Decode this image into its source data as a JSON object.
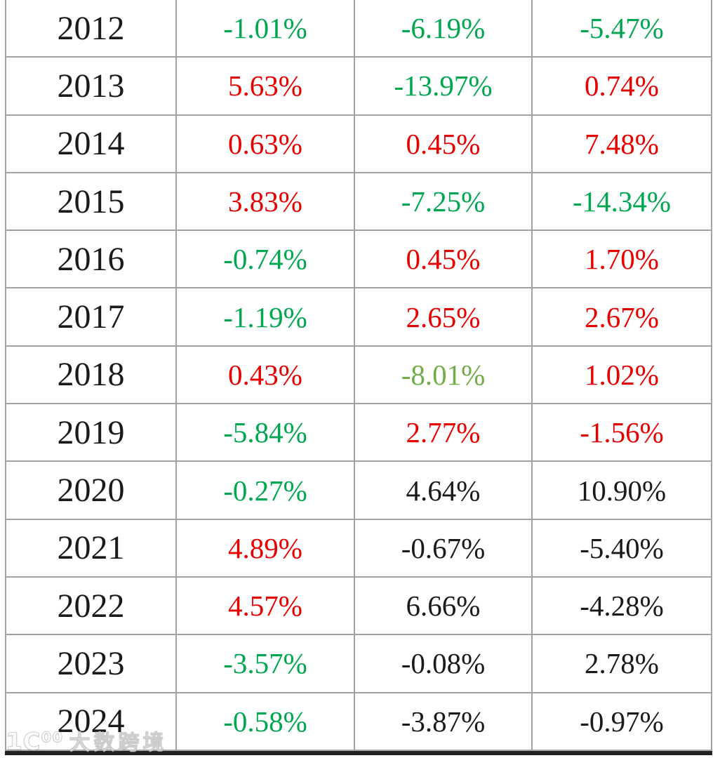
{
  "colors": {
    "positive_red": "#e60000",
    "negative_green": "#00a650",
    "olive_green": "#70ad47",
    "neutral_black": "#1a1a1a",
    "grid_border": "#a2a2a2",
    "bottom_bar": "#222222"
  },
  "watermark": {
    "logo_text": "1Ϲ⁰⁰",
    "brand_text": "大数跨境"
  },
  "chart_data": {
    "type": "table",
    "title": "",
    "columns": [
      "year",
      "value_1",
      "value_2",
      "value_3"
    ],
    "layout": "13 rows, year column + 3 percentage columns; red = gain style, green = loss style, black = plain",
    "rows": [
      {
        "year": "2012",
        "values": [
          {
            "text": "-1.01%",
            "color": "green"
          },
          {
            "text": "-6.19%",
            "color": "green"
          },
          {
            "text": "-5.47%",
            "color": "green"
          }
        ]
      },
      {
        "year": "2013",
        "values": [
          {
            "text": "5.63%",
            "color": "red"
          },
          {
            "text": "-13.97%",
            "color": "green"
          },
          {
            "text": "0.74%",
            "color": "red"
          }
        ]
      },
      {
        "year": "2014",
        "values": [
          {
            "text": "0.63%",
            "color": "red"
          },
          {
            "text": "0.45%",
            "color": "red"
          },
          {
            "text": "7.48%",
            "color": "red"
          }
        ]
      },
      {
        "year": "2015",
        "values": [
          {
            "text": "3.83%",
            "color": "red"
          },
          {
            "text": "-7.25%",
            "color": "green"
          },
          {
            "text": "-14.34%",
            "color": "green"
          }
        ]
      },
      {
        "year": "2016",
        "values": [
          {
            "text": "-0.74%",
            "color": "green"
          },
          {
            "text": "0.45%",
            "color": "red"
          },
          {
            "text": "1.70%",
            "color": "red"
          }
        ]
      },
      {
        "year": "2017",
        "values": [
          {
            "text": "-1.19%",
            "color": "green"
          },
          {
            "text": "2.65%",
            "color": "red"
          },
          {
            "text": "2.67%",
            "color": "red"
          }
        ]
      },
      {
        "year": "2018",
        "values": [
          {
            "text": "0.43%",
            "color": "red"
          },
          {
            "text": "-8.01%",
            "color": "olive"
          },
          {
            "text": "1.02%",
            "color": "red"
          }
        ]
      },
      {
        "year": "2019",
        "values": [
          {
            "text": "-5.84%",
            "color": "green"
          },
          {
            "text": "2.77%",
            "color": "red"
          },
          {
            "text": "-1.56%",
            "color": "red"
          }
        ]
      },
      {
        "year": "2020",
        "values": [
          {
            "text": "-0.27%",
            "color": "green"
          },
          {
            "text": "4.64%",
            "color": "black"
          },
          {
            "text": "10.90%",
            "color": "black"
          }
        ]
      },
      {
        "year": "2021",
        "values": [
          {
            "text": "4.89%",
            "color": "red"
          },
          {
            "text": "-0.67%",
            "color": "black"
          },
          {
            "text": "-5.40%",
            "color": "black"
          }
        ]
      },
      {
        "year": "2022",
        "values": [
          {
            "text": "4.57%",
            "color": "red"
          },
          {
            "text": "6.66%",
            "color": "black"
          },
          {
            "text": "-4.28%",
            "color": "black"
          }
        ]
      },
      {
        "year": "2023",
        "values": [
          {
            "text": "-3.57%",
            "color": "green"
          },
          {
            "text": "-0.08%",
            "color": "black"
          },
          {
            "text": "2.78%",
            "color": "black"
          }
        ]
      },
      {
        "year": "2024",
        "values": [
          {
            "text": "-0.58%",
            "color": "green"
          },
          {
            "text": "-3.87%",
            "color": "black"
          },
          {
            "text": "-0.97%",
            "color": "black"
          }
        ]
      }
    ]
  }
}
